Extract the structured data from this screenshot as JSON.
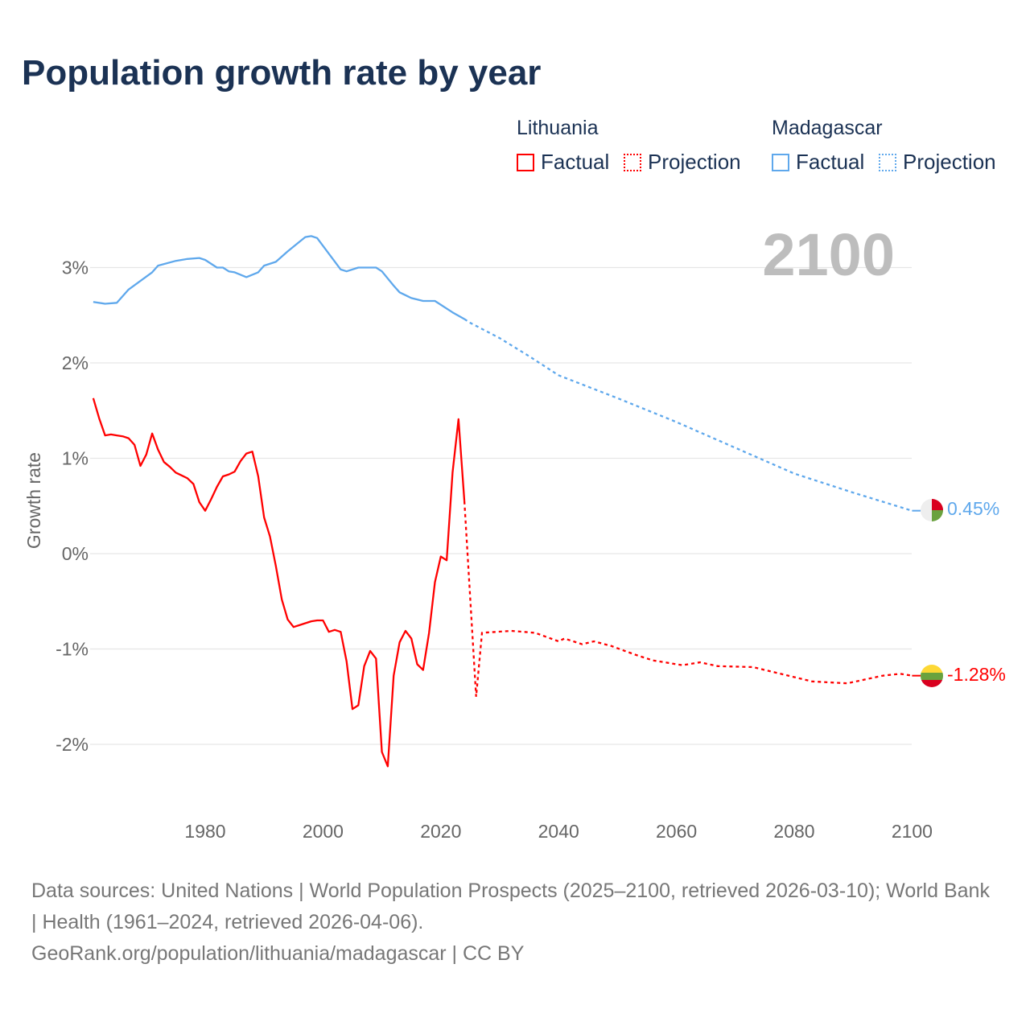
{
  "title": "Population growth rate by year",
  "legend": {
    "groups": [
      {
        "name": "Lithuania",
        "factual": "Factual",
        "projection": "Projection",
        "color": "#ff0000"
      },
      {
        "name": "Madagascar",
        "factual": "Factual",
        "projection": "Projection",
        "color": "#5fa8ec"
      }
    ]
  },
  "footer": {
    "line1": "Data sources: United Nations | World Population Prospects (2025–2100, retrieved 2026-03-10); World Bank | Health (1961–2024, retrieved 2026-04-06).",
    "line2": "GeoRank.org/population/lithuania/madagascar | CC BY"
  },
  "chart_data": {
    "type": "line",
    "title": "Population growth rate by year",
    "year_label": "2100",
    "xlabel": "",
    "ylabel": "Growth rate",
    "xlim": [
      1961,
      2100
    ],
    "ylim": [
      -2.5,
      3.5
    ],
    "x_ticks": [
      1980,
      2000,
      2020,
      2040,
      2060,
      2080,
      2100
    ],
    "x_tick_labels": [
      "1980",
      "2000",
      "2020",
      "2040",
      "2060",
      "2080",
      "2100"
    ],
    "y_ticks": [
      3,
      2,
      1,
      0,
      -1,
      -2
    ],
    "y_tick_labels": [
      "3%",
      "2%",
      "1%",
      "0%",
      "-1%",
      "-2%"
    ],
    "grid": true,
    "series": [
      {
        "name": "Lithuania",
        "color": "#ff0000",
        "end_label": "-1.28%",
        "factual": [
          [
            1961,
            1.63
          ],
          [
            1962,
            1.42
          ],
          [
            1963,
            1.24
          ],
          [
            1964,
            1.25
          ],
          [
            1965,
            1.24
          ],
          [
            1966,
            1.23
          ],
          [
            1967,
            1.21
          ],
          [
            1968,
            1.14
          ],
          [
            1969,
            0.92
          ],
          [
            1970,
            1.04
          ],
          [
            1971,
            1.26
          ],
          [
            1972,
            1.09
          ],
          [
            1973,
            0.96
          ],
          [
            1974,
            0.91
          ],
          [
            1975,
            0.85
          ],
          [
            1976,
            0.82
          ],
          [
            1977,
            0.79
          ],
          [
            1978,
            0.73
          ],
          [
            1979,
            0.54
          ],
          [
            1980,
            0.45
          ],
          [
            1981,
            0.57
          ],
          [
            1982,
            0.7
          ],
          [
            1983,
            0.81
          ],
          [
            1984,
            0.83
          ],
          [
            1985,
            0.86
          ],
          [
            1986,
            0.97
          ],
          [
            1987,
            1.05
          ],
          [
            1988,
            1.07
          ],
          [
            1989,
            0.81
          ],
          [
            1990,
            0.38
          ],
          [
            1991,
            0.18
          ],
          [
            1992,
            -0.13
          ],
          [
            1993,
            -0.48
          ],
          [
            1994,
            -0.69
          ],
          [
            1995,
            -0.77
          ],
          [
            1996,
            -0.75
          ],
          [
            1997,
            -0.73
          ],
          [
            1998,
            -0.71
          ],
          [
            1999,
            -0.7
          ],
          [
            2000,
            -0.7
          ],
          [
            2001,
            -0.82
          ],
          [
            2002,
            -0.8
          ],
          [
            2003,
            -0.82
          ],
          [
            2004,
            -1.13
          ],
          [
            2005,
            -1.63
          ],
          [
            2006,
            -1.59
          ],
          [
            2007,
            -1.18
          ],
          [
            2008,
            -1.02
          ],
          [
            2009,
            -1.1
          ],
          [
            2010,
            -2.08
          ],
          [
            2011,
            -2.23
          ],
          [
            2012,
            -1.28
          ],
          [
            2013,
            -0.93
          ],
          [
            2014,
            -0.81
          ],
          [
            2015,
            -0.89
          ],
          [
            2016,
            -1.16
          ],
          [
            2017,
            -1.22
          ],
          [
            2018,
            -0.83
          ],
          [
            2019,
            -0.3
          ],
          [
            2020,
            -0.03
          ],
          [
            2021,
            -0.07
          ],
          [
            2022,
            0.85
          ],
          [
            2023,
            1.41
          ],
          [
            2024,
            0.55
          ]
        ],
        "projection": [
          [
            2024,
            0.55
          ],
          [
            2026,
            -1.5
          ],
          [
            2027,
            -0.83
          ],
          [
            2032,
            -0.81
          ],
          [
            2036,
            -0.83
          ],
          [
            2040,
            -0.92
          ],
          [
            2041,
            -0.89
          ],
          [
            2044,
            -0.95
          ],
          [
            2046,
            -0.92
          ],
          [
            2049,
            -0.97
          ],
          [
            2053,
            -1.06
          ],
          [
            2056,
            -1.12
          ],
          [
            2061,
            -1.17
          ],
          [
            2064,
            -1.14
          ],
          [
            2067,
            -1.18
          ],
          [
            2073,
            -1.19
          ],
          [
            2077,
            -1.25
          ],
          [
            2083,
            -1.34
          ],
          [
            2086,
            -1.35
          ],
          [
            2089,
            -1.36
          ],
          [
            2095,
            -1.28
          ],
          [
            2098,
            -1.26
          ],
          [
            2100,
            -1.28
          ]
        ]
      },
      {
        "name": "Madagascar",
        "color": "#5fa8ec",
        "end_label": "0.45%",
        "factual": [
          [
            1961,
            2.64
          ],
          [
            1963,
            2.62
          ],
          [
            1965,
            2.63
          ],
          [
            1967,
            2.77
          ],
          [
            1971,
            2.95
          ],
          [
            1972,
            3.02
          ],
          [
            1975,
            3.07
          ],
          [
            1977,
            3.09
          ],
          [
            1979,
            3.1
          ],
          [
            1980,
            3.08
          ],
          [
            1982,
            3.0
          ],
          [
            1983,
            3.0
          ],
          [
            1984,
            2.96
          ],
          [
            1985,
            2.95
          ],
          [
            1987,
            2.9
          ],
          [
            1989,
            2.95
          ],
          [
            1990,
            3.02
          ],
          [
            1992,
            3.06
          ],
          [
            1994,
            3.17
          ],
          [
            1996,
            3.27
          ],
          [
            1997,
            3.32
          ],
          [
            1998,
            3.33
          ],
          [
            1999,
            3.31
          ],
          [
            2003,
            2.98
          ],
          [
            2004,
            2.96
          ],
          [
            2006,
            3.0
          ],
          [
            2009,
            3.0
          ],
          [
            2010,
            2.96
          ],
          [
            2012,
            2.81
          ],
          [
            2013,
            2.74
          ],
          [
            2015,
            2.68
          ],
          [
            2017,
            2.65
          ],
          [
            2019,
            2.65
          ],
          [
            2022,
            2.53
          ],
          [
            2024,
            2.46
          ]
        ],
        "projection": [
          [
            2024,
            2.46
          ],
          [
            2025,
            2.42
          ],
          [
            2030,
            2.26
          ],
          [
            2035,
            2.07
          ],
          [
            2040,
            1.87
          ],
          [
            2050,
            1.63
          ],
          [
            2060,
            1.38
          ],
          [
            2070,
            1.11
          ],
          [
            2080,
            0.84
          ],
          [
            2090,
            0.64
          ],
          [
            2100,
            0.45
          ]
        ]
      }
    ]
  }
}
